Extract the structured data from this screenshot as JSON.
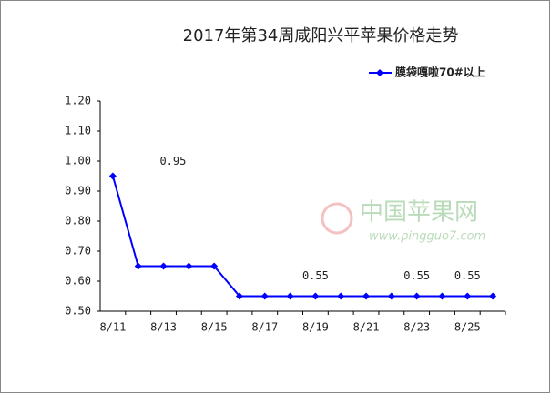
{
  "chart_data": {
    "type": "line",
    "title": "2017年第34周咸阳兴平苹果价格走势",
    "categories": [
      "8/11",
      null,
      "8/13",
      null,
      "8/15",
      null,
      "8/17",
      null,
      "8/19",
      null,
      "8/21",
      null,
      "8/23",
      null,
      "8/25",
      null
    ],
    "series": [
      {
        "name": "膜袋嘎啦70#以上",
        "color": "#0000ff",
        "values": [
          0.95,
          0.65,
          0.65,
          0.65,
          0.65,
          0.55,
          0.55,
          0.55,
          0.55,
          0.55,
          0.55,
          0.55,
          0.55,
          0.55,
          0.55,
          0.55
        ],
        "value_labels": [
          "0.95",
          null,
          null,
          null,
          null,
          null,
          null,
          null,
          "0.55",
          null,
          null,
          null,
          "0.55",
          null,
          "0.55",
          null
        ]
      }
    ],
    "ylim": [
      0.5,
      1.2
    ],
    "yticks": [
      {
        "value": 0.5,
        "label": "0.50"
      },
      {
        "value": 0.6,
        "label": "0.60"
      },
      {
        "value": 0.7,
        "label": "0.70"
      },
      {
        "value": 0.8,
        "label": "0.80"
      },
      {
        "value": 0.9,
        "label": "0.90"
      },
      {
        "value": 1.0,
        "label": "1.00"
      },
      {
        "value": 1.1,
        "label": "1.10"
      },
      {
        "value": 1.2,
        "label": "1.20"
      }
    ],
    "legend": "top-right",
    "watermark": [
      "中国苹果网",
      "www.pingguo7.com"
    ]
  }
}
